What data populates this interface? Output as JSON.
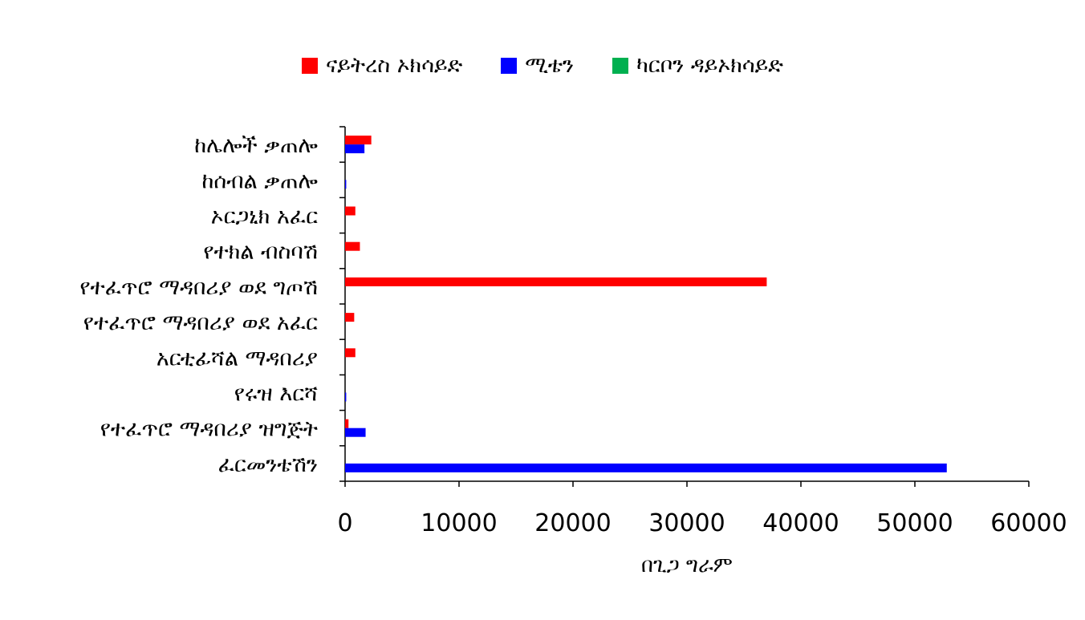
{
  "chart_data": {
    "type": "bar",
    "orientation": "horizontal",
    "categories": [
      "ከሌሎች ቃጠሎ",
      "ከሰብል ቃጠሎ",
      "ኦርጋኒክ አፈር",
      "የተክል ብስባሽ",
      "የተፈጥሮ ማዳበሪያ ወደ ግጦሽ",
      "የተፈጥሮ ማዳበሪያ ወደ አፈር",
      "አርቲፊሻል ማዳበሪያ",
      "የሩዝ እርሻ",
      "የተፈጥሮ ማዳበሪያ ዝግጅት",
      "ፈርመንቴሽን"
    ],
    "series": [
      {
        "name": "ናይትረስ ኦክሳይድ",
        "color": "#ff0000",
        "values": [
          2300,
          0,
          900,
          1300,
          37000,
          800,
          900,
          0,
          300,
          0
        ]
      },
      {
        "name": "ሚቴን",
        "color": "#0000ff",
        "values": [
          1700,
          100,
          0,
          0,
          0,
          0,
          0,
          100,
          1800,
          52800
        ]
      },
      {
        "name": "ካርቦን ዳይኦክሳይድ",
        "color": "#00b050",
        "values": [
          0,
          0,
          0,
          0,
          0,
          0,
          0,
          0,
          0,
          0
        ]
      }
    ],
    "xlabel": "በጊጋ ግራም",
    "ylabel": "",
    "xlim": [
      0,
      60000
    ],
    "xticks": [
      0,
      10000,
      20000,
      30000,
      40000,
      50000,
      60000
    ],
    "grid": false,
    "legend_position": "top"
  }
}
